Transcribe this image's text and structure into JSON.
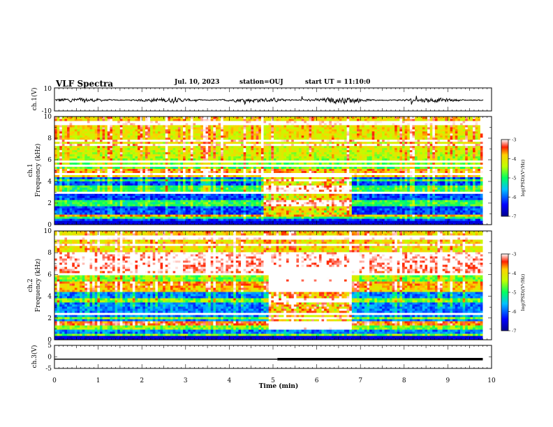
{
  "header": {
    "title": "VLF Spectra",
    "date": "Jul. 10, 2023",
    "station": "station=OUJ",
    "start_ut": "start UT = 11:10:0"
  },
  "chart_data": [
    {
      "type": "line",
      "name": "ch1-waveform",
      "ylabel": "ch.1(V)",
      "ylim": [
        -10,
        10
      ],
      "yticks": [
        "10",
        "-10"
      ],
      "xlim": [
        0,
        10
      ],
      "baseline": 0,
      "noise_amplitude_v": 2
    },
    {
      "type": "heatmap",
      "name": "ch1-spectrogram",
      "ylabel": "ch.1\nFrequency (kHz)",
      "ylim": [
        0,
        10
      ],
      "yticks": [
        "0",
        "2",
        "4",
        "6",
        "8",
        "10"
      ],
      "xlim": [
        0,
        9.8
      ],
      "burst_interval_min": [
        4.8,
        6.8
      ],
      "burst_band_khz": [
        1.0,
        4.8
      ],
      "colorbar": {
        "label": "log(PSD)(V²/Hz)",
        "range": [
          -7,
          -3
        ],
        "ticks": [
          "-3",
          "-4",
          "-5",
          "-6",
          "-7"
        ]
      }
    },
    {
      "type": "heatmap",
      "name": "ch2-spectrogram",
      "ylabel": "ch.2\nFrequency (kHz)",
      "ylim": [
        0,
        10
      ],
      "yticks": [
        "0",
        "2",
        "4",
        "6",
        "8",
        "10"
      ],
      "xlim": [
        0,
        9.8
      ],
      "burst_interval_min": [
        4.9,
        6.8
      ],
      "burst_band_khz": [
        1.0,
        6.8
      ],
      "colorbar": {
        "label": "log(PSD)(V²/Hz)",
        "range": [
          -7,
          -3
        ],
        "ticks": [
          "-3",
          "-4",
          "-5",
          "-6",
          "-7"
        ]
      }
    },
    {
      "type": "line",
      "name": "ch3-level",
      "ylabel": "ch.3(V)",
      "ylim": [
        -5,
        5
      ],
      "yticks": [
        "5",
        "0",
        "-5"
      ],
      "xlim": [
        0,
        10
      ],
      "segments": [
        {
          "x": [
            0,
            5.1
          ],
          "y": -1,
          "weight": "thin"
        },
        {
          "x": [
            5.1,
            9.8
          ],
          "y": -1,
          "weight": "thick"
        }
      ]
    }
  ],
  "xaxis": {
    "label": "Time (min)",
    "range": [
      0,
      10
    ],
    "ticks": [
      "0",
      "1",
      "2",
      "3",
      "4",
      "5",
      "6",
      "7",
      "8",
      "9",
      "10"
    ]
  }
}
